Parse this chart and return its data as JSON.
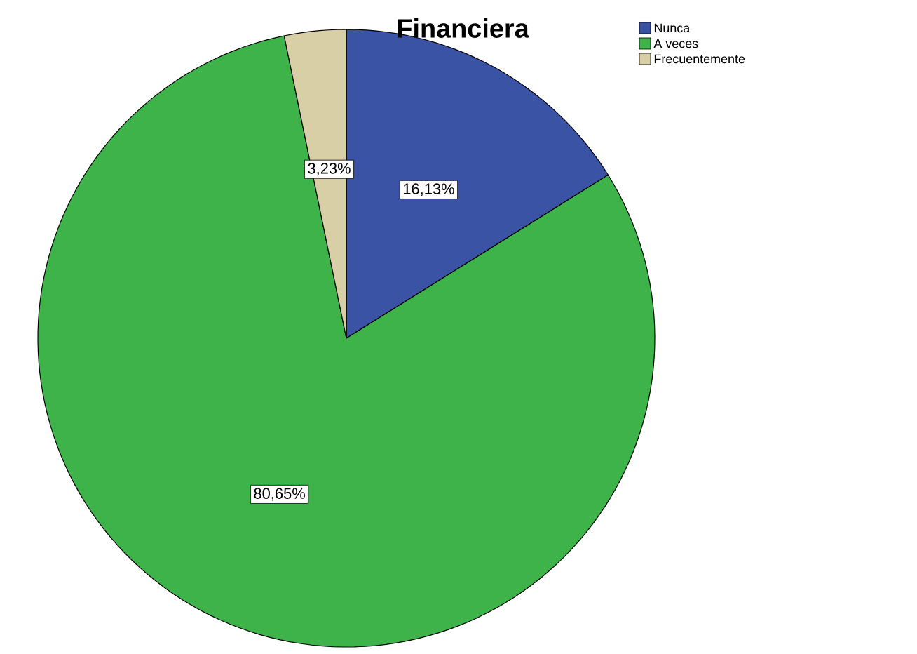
{
  "chart_data": {
    "type": "pie",
    "title": "Financiera",
    "categories": [
      "Nunca",
      "A veces",
      "Frecuentemente"
    ],
    "values": [
      16.13,
      80.65,
      3.23
    ],
    "colors": [
      "#3a53a4",
      "#3db34a",
      "#d8cfa6"
    ],
    "value_labels": [
      "16,13%",
      "80,65%",
      "3,23%"
    ],
    "legend": "top right"
  }
}
